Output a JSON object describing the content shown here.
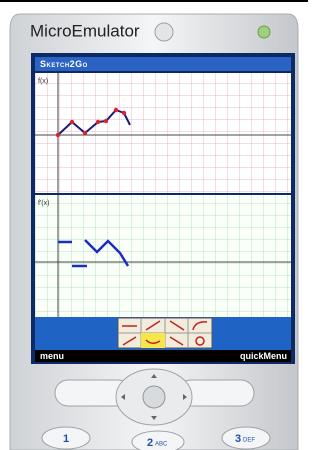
{
  "app_title": "MicroEmulator",
  "screen": {
    "title": "Sketch2Go",
    "panels": [
      {
        "label": "f(x)"
      },
      {
        "label": "f'(x)"
      }
    ],
    "softkeys": {
      "left": "menu",
      "right": "quickMenu"
    }
  },
  "keys": [
    {
      "digit": "1"
    },
    {
      "digit": "2",
      "letters": "ABC"
    },
    {
      "digit": "3",
      "letters": "DEF"
    }
  ]
}
